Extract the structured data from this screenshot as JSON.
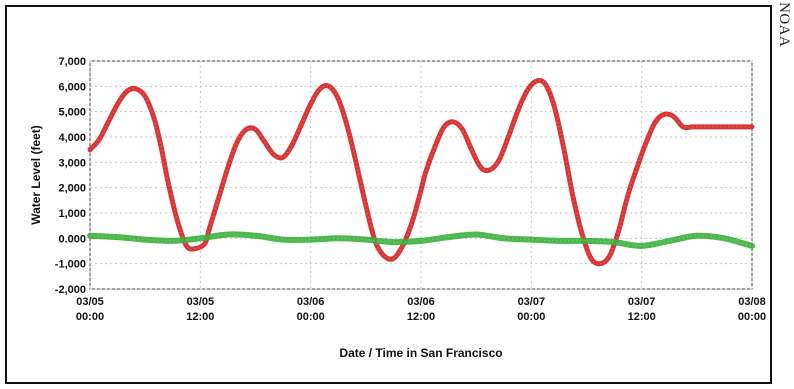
{
  "credit": "NOAA",
  "chart_data": {
    "type": "line",
    "title": "",
    "xlabel": "Date / Time in San Francisco",
    "ylabel": "Water Level (feet)",
    "ylim": [
      -2000,
      7000
    ],
    "y_ticks": [
      7000,
      6000,
      5000,
      4000,
      3000,
      2000,
      1000,
      0,
      -1000,
      -2000
    ],
    "y_tick_labels": [
      "7,000",
      "6,000",
      "5,000",
      "4,000",
      "3,000",
      "2,000",
      "1,000",
      "0.000",
      "-1,000",
      "-2,000"
    ],
    "x_unit": "hours since first tick",
    "xlim": [
      0,
      72
    ],
    "x_ticks": [
      {
        "x": 0,
        "date": "03/05",
        "time": "00:00"
      },
      {
        "x": 12,
        "date": "03/05",
        "time": "12:00"
      },
      {
        "x": 24,
        "date": "03/06",
        "time": "00:00"
      },
      {
        "x": 36,
        "date": "03/06",
        "time": "12:00"
      },
      {
        "x": 48,
        "date": "03/07",
        "time": "00:00"
      },
      {
        "x": 60,
        "date": "03/07",
        "time": "12:00"
      },
      {
        "x": 72,
        "date": "03/08",
        "time": "00:00"
      }
    ],
    "grid": true,
    "series": [
      {
        "color": "#d42020",
        "x": [
          0,
          1,
          2,
          3,
          4,
          5,
          6,
          7,
          7.8,
          8.5,
          9.5,
          10.5,
          11.5,
          12.5,
          13,
          14,
          15,
          16,
          17,
          18,
          19,
          20,
          21,
          22,
          23,
          24,
          25,
          26,
          27,
          28,
          29,
          30,
          31,
          32,
          33,
          34,
          35,
          36,
          36.5,
          37.5,
          38.5,
          39.5,
          40.5,
          41.5,
          42.5,
          43.5,
          44.5,
          45.5,
          46.5,
          47.5,
          48.5,
          49.5,
          50.5,
          51.5,
          52.5,
          53.5,
          54.5,
          55.5,
          56.5,
          57.5,
          58.5,
          59.5,
          60.5,
          61.5,
          62.5,
          63.5,
          64.5,
          65.5,
          66.5,
          67.5,
          68.5,
          69.5,
          70.5,
          71.5,
          72
        ],
        "values": [
          3500,
          3900,
          4600,
          5300,
          5800,
          5900,
          5600,
          4700,
          3500,
          2200,
          700,
          -300,
          -400,
          -200,
          400,
          1600,
          2800,
          3800,
          4300,
          4300,
          3800,
          3300,
          3200,
          3700,
          4500,
          5300,
          5900,
          6000,
          5500,
          4400,
          2900,
          1300,
          -100,
          -700,
          -800,
          -300,
          600,
          1900,
          2600,
          3600,
          4400,
          4600,
          4300,
          3500,
          2800,
          2700,
          3100,
          4000,
          5000,
          5800,
          6200,
          6100,
          5200,
          3600,
          1700,
          200,
          -800,
          -1000,
          -700,
          300,
          1700,
          2800,
          3800,
          4600,
          4900,
          4800,
          4400,
          4400,
          4400,
          4400,
          4400,
          4400,
          4400,
          4400,
          4400
        ]
      },
      {
        "color": "#3ab03a",
        "x": [
          0,
          3,
          6,
          9,
          12,
          15,
          18,
          21,
          24,
          27,
          30,
          33,
          36,
          39,
          42,
          45,
          48,
          51,
          54,
          57,
          60,
          63,
          66,
          69,
          72
        ],
        "values": [
          100,
          50,
          -50,
          -100,
          0,
          150,
          100,
          -50,
          -50,
          0,
          -50,
          -150,
          -100,
          50,
          150,
          0,
          -50,
          -100,
          -100,
          -150,
          -300,
          -100,
          100,
          0,
          -300
        ]
      }
    ]
  }
}
